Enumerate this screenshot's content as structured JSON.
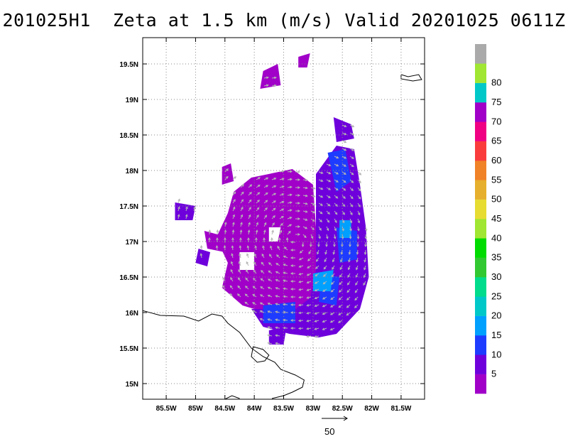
{
  "chart_data": {
    "type": "heatmap",
    "title": "201025H1  Zeta at 1.5 km (m/s) Valid 20201025 0611Z",
    "xlabel": "",
    "ylabel": "",
    "x_ticks": [
      {
        "value": -85.5,
        "label": "85.5W"
      },
      {
        "value": -85.0,
        "label": "85W"
      },
      {
        "value": -84.5,
        "label": "84.5W"
      },
      {
        "value": -84.0,
        "label": "84W"
      },
      {
        "value": -83.5,
        "label": "83.5W"
      },
      {
        "value": -83.0,
        "label": "83W"
      },
      {
        "value": -82.5,
        "label": "82.5W"
      },
      {
        "value": -82.0,
        "label": "82W"
      },
      {
        "value": -81.5,
        "label": "81.5W"
      }
    ],
    "y_ticks": [
      {
        "value": 15.0,
        "label": "15N"
      },
      {
        "value": 15.5,
        "label": "15.5N"
      },
      {
        "value": 16.0,
        "label": "16N"
      },
      {
        "value": 16.5,
        "label": "16.5N"
      },
      {
        "value": 17.0,
        "label": "17N"
      },
      {
        "value": 17.5,
        "label": "17.5N"
      },
      {
        "value": 18.0,
        "label": "18N"
      },
      {
        "value": 18.5,
        "label": "18.5N"
      },
      {
        "value": 19.0,
        "label": "19N"
      },
      {
        "value": 19.5,
        "label": "19.5N"
      }
    ],
    "xlim": [
      -85.9,
      -81.1
    ],
    "ylim": [
      14.78,
      19.87
    ],
    "grid": true,
    "colorbar": {
      "labels": [
        "5",
        "10",
        "15",
        "20",
        "25",
        "30",
        "35",
        "40",
        "45",
        "50",
        "55",
        "60",
        "65",
        "70",
        "75",
        "80"
      ],
      "colors": [
        "#a000c8",
        "#6e00dc",
        "#1e3cff",
        "#00a0ff",
        "#00c8c8",
        "#00dc8c",
        "#32c832",
        "#00dc00",
        "#a0e632",
        "#e6dc32",
        "#e6af2d",
        "#f08228",
        "#fa3c3c",
        "#f00082",
        "#a000c8",
        "#00c8c8",
        "#a0e632",
        "#aaaaaa"
      ]
    },
    "reference_vector_label": "50",
    "field_regions": [
      {
        "category": "5",
        "polygon": [
          [
            -84.05,
            17.9
          ],
          [
            -83.35,
            18.02
          ],
          [
            -83.0,
            17.8
          ],
          [
            -82.95,
            17.2
          ],
          [
            -82.95,
            16.45
          ],
          [
            -83.1,
            16.0
          ],
          [
            -83.6,
            15.95
          ],
          [
            -84.2,
            16.1
          ],
          [
            -84.55,
            16.35
          ],
          [
            -84.45,
            16.7
          ],
          [
            -84.65,
            17.05
          ],
          [
            -84.45,
            17.4
          ],
          [
            -84.35,
            17.7
          ]
        ]
      },
      {
        "category": "5",
        "polygon": [
          [
            -84.85,
            17.15
          ],
          [
            -84.4,
            17.05
          ],
          [
            -84.5,
            16.85
          ],
          [
            -84.8,
            16.9
          ]
        ]
      },
      {
        "category": "5",
        "polygon": [
          [
            -83.85,
            19.4
          ],
          [
            -83.6,
            19.5
          ],
          [
            -83.55,
            19.2
          ],
          [
            -83.9,
            19.15
          ]
        ]
      },
      {
        "category": "5",
        "polygon": [
          [
            -83.25,
            19.6
          ],
          [
            -83.05,
            19.65
          ],
          [
            -83.1,
            19.45
          ],
          [
            -83.25,
            19.45
          ]
        ]
      },
      {
        "category": "5",
        "polygon": [
          [
            -84.55,
            18.05
          ],
          [
            -84.4,
            18.1
          ],
          [
            -84.35,
            17.85
          ],
          [
            -84.55,
            17.8
          ]
        ]
      },
      {
        "category": "5",
        "polygon": [
          [
            -84.35,
            17.05
          ],
          [
            -84.1,
            17.0
          ],
          [
            -84.1,
            16.8
          ],
          [
            -84.35,
            16.8
          ]
        ]
      },
      {
        "category": "10",
        "polygon": [
          [
            -82.95,
            17.95
          ],
          [
            -82.6,
            18.35
          ],
          [
            -82.3,
            18.3
          ],
          [
            -82.2,
            17.8
          ],
          [
            -82.1,
            17.2
          ],
          [
            -82.05,
            16.5
          ],
          [
            -82.2,
            16.05
          ],
          [
            -82.6,
            15.7
          ],
          [
            -82.9,
            15.65
          ],
          [
            -83.4,
            15.7
          ],
          [
            -83.85,
            15.8
          ],
          [
            -84.05,
            16.05
          ],
          [
            -83.3,
            16.05
          ],
          [
            -83.05,
            16.2
          ],
          [
            -82.95,
            16.6
          ],
          [
            -82.95,
            17.5
          ]
        ]
      },
      {
        "category": "10",
        "polygon": [
          [
            -82.65,
            18.75
          ],
          [
            -82.35,
            18.65
          ],
          [
            -82.3,
            18.45
          ],
          [
            -82.6,
            18.4
          ]
        ]
      },
      {
        "category": "10",
        "polygon": [
          [
            -85.35,
            17.55
          ],
          [
            -85.0,
            17.5
          ],
          [
            -85.05,
            17.3
          ],
          [
            -85.35,
            17.3
          ]
        ]
      },
      {
        "category": "10",
        "polygon": [
          [
            -84.95,
            16.9
          ],
          [
            -84.75,
            16.85
          ],
          [
            -84.8,
            16.65
          ],
          [
            -85.0,
            16.7
          ]
        ]
      },
      {
        "category": "10",
        "polygon": [
          [
            -83.75,
            15.75
          ],
          [
            -83.45,
            15.8
          ],
          [
            -83.5,
            15.55
          ],
          [
            -83.75,
            15.55
          ]
        ]
      },
      {
        "category": "15",
        "polygon": [
          [
            -82.75,
            18.25
          ],
          [
            -82.45,
            18.3
          ],
          [
            -82.35,
            17.85
          ],
          [
            -82.6,
            17.7
          ]
        ]
      },
      {
        "category": "15",
        "polygon": [
          [
            -82.6,
            17.2
          ],
          [
            -82.25,
            17.15
          ],
          [
            -82.25,
            16.75
          ],
          [
            -82.55,
            16.7
          ]
        ]
      },
      {
        "category": "15",
        "polygon": [
          [
            -82.85,
            16.55
          ],
          [
            -82.55,
            16.5
          ],
          [
            -82.6,
            16.1
          ],
          [
            -82.9,
            16.15
          ]
        ]
      },
      {
        "category": "15",
        "polygon": [
          [
            -83.85,
            16.1
          ],
          [
            -83.3,
            16.15
          ],
          [
            -83.3,
            15.85
          ],
          [
            -83.85,
            15.85
          ]
        ]
      },
      {
        "category": "20",
        "polygon": [
          [
            -83.0,
            16.55
          ],
          [
            -82.65,
            16.6
          ],
          [
            -82.7,
            16.3
          ],
          [
            -83.0,
            16.3
          ]
        ]
      },
      {
        "category": "20",
        "polygon": [
          [
            -82.55,
            17.3
          ],
          [
            -82.35,
            17.3
          ],
          [
            -82.35,
            17.05
          ],
          [
            -82.55,
            17.05
          ]
        ]
      }
    ],
    "blank_regions": [
      {
        "polygon": [
          [
            -84.25,
            16.85
          ],
          [
            -84.0,
            16.85
          ],
          [
            -84.0,
            16.6
          ],
          [
            -84.25,
            16.6
          ]
        ]
      },
      {
        "polygon": [
          [
            -83.75,
            17.2
          ],
          [
            -83.55,
            17.2
          ],
          [
            -83.6,
            17.0
          ],
          [
            -83.75,
            17.0
          ]
        ]
      }
    ],
    "coastlines": [
      [
        [
          -86.0,
          16.05
        ],
        [
          -85.6,
          15.96
        ],
        [
          -85.2,
          15.95
        ],
        [
          -84.95,
          15.88
        ],
        [
          -84.72,
          15.98
        ],
        [
          -84.55,
          15.95
        ],
        [
          -84.45,
          15.85
        ],
        [
          -84.25,
          15.72
        ],
        [
          -84.05,
          15.5
        ],
        [
          -83.85,
          15.38
        ],
        [
          -83.65,
          15.3
        ],
        [
          -83.55,
          15.2
        ],
        [
          -83.3,
          15.12
        ],
        [
          -83.15,
          15.05
        ],
        [
          -83.18,
          14.95
        ],
        [
          -83.35,
          14.88
        ],
        [
          -83.5,
          14.83
        ],
        [
          -83.7,
          14.79
        ]
      ],
      [
        [
          -84.5,
          14.78
        ],
        [
          -84.38,
          14.83
        ],
        [
          -84.25,
          14.79
        ]
      ],
      [
        [
          -84.02,
          15.52
        ],
        [
          -83.85,
          15.48
        ],
        [
          -83.75,
          15.4
        ],
        [
          -83.82,
          15.32
        ],
        [
          -83.95,
          15.3
        ],
        [
          -84.05,
          15.38
        ],
        [
          -84.02,
          15.52
        ]
      ],
      [
        [
          -81.5,
          19.35
        ],
        [
          -81.38,
          19.32
        ],
        [
          -81.2,
          19.35
        ],
        [
          -81.15,
          19.28
        ],
        [
          -81.3,
          19.26
        ],
        [
          -81.5,
          19.29
        ],
        [
          -81.5,
          19.35
        ]
      ]
    ]
  }
}
